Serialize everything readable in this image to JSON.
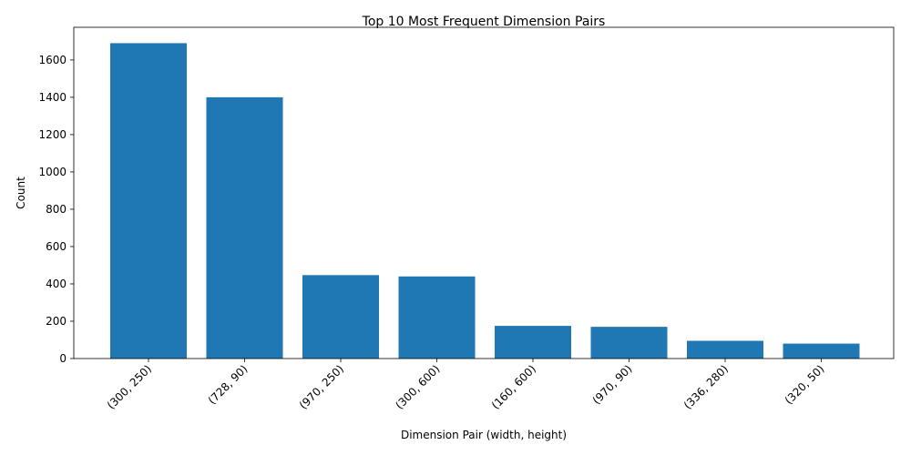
{
  "chart_data": {
    "type": "bar",
    "title": "Top 10 Most Frequent Dimension Pairs",
    "xlabel": "Dimension Pair (width, height)",
    "ylabel": "Count",
    "categories": [
      "(300, 250)",
      "(728, 90)",
      "(970, 250)",
      "(300, 600)",
      "(160, 600)",
      "(970, 90)",
      "(336, 280)",
      "(320, 50)"
    ],
    "values": [
      1690,
      1400,
      447,
      440,
      175,
      170,
      95,
      80
    ],
    "ylim": [
      0,
      1775
    ],
    "yticks": [
      0,
      200,
      400,
      600,
      800,
      1000,
      1200,
      1400,
      1600
    ],
    "bar_color": "#1f77b4",
    "grid": false,
    "legend": "none"
  }
}
